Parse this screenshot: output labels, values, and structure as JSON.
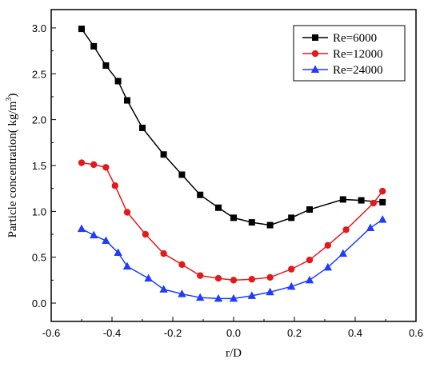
{
  "chart_data": {
    "type": "line",
    "xlabel": "r/D",
    "ylabel": "Particle concentration(  kg/m",
    "ylabel_sup": "3",
    "ylabel_close": ")",
    "xlim": [
      -0.6,
      0.6
    ],
    "ylim": [
      -0.2,
      3.2
    ],
    "x_ticks": [
      -0.6,
      -0.4,
      -0.2,
      0.0,
      0.2,
      0.4,
      0.6
    ],
    "x_tick_labels": [
      "-0.6",
      "-0.4",
      "-0.2",
      "0.0",
      "0.2",
      "0.4",
      "0.6"
    ],
    "y_ticks": [
      0.0,
      0.5,
      1.0,
      1.5,
      2.0,
      2.5,
      3.0
    ],
    "y_tick_labels": [
      "0.0",
      "0.5",
      "1.0",
      "1.5",
      "2.0",
      "2.5",
      "3.0"
    ],
    "grid": false,
    "legend_position": "top-right",
    "series": [
      {
        "name": "Re=6000",
        "color": "#000000",
        "marker": "square",
        "x": [
          -0.5,
          -0.46,
          -0.42,
          -0.38,
          -0.35,
          -0.3,
          -0.23,
          -0.17,
          -0.11,
          -0.05,
          0.0,
          0.06,
          0.12,
          0.19,
          0.25,
          0.36,
          0.42,
          0.49
        ],
        "y": [
          2.99,
          2.8,
          2.59,
          2.42,
          2.21,
          1.91,
          1.62,
          1.4,
          1.18,
          1.04,
          0.93,
          0.88,
          0.85,
          0.93,
          1.02,
          1.13,
          1.12,
          1.1
        ]
      },
      {
        "name": "Re=12000",
        "color": "#e31a1c",
        "marker": "circle",
        "x": [
          -0.5,
          -0.46,
          -0.42,
          -0.39,
          -0.35,
          -0.29,
          -0.23,
          -0.17,
          -0.11,
          -0.05,
          0.0,
          0.06,
          0.12,
          0.19,
          0.25,
          0.31,
          0.37,
          0.46,
          0.49
        ],
        "y": [
          1.53,
          1.51,
          1.48,
          1.28,
          0.99,
          0.75,
          0.54,
          0.42,
          0.3,
          0.27,
          0.25,
          0.26,
          0.28,
          0.37,
          0.47,
          0.63,
          0.8,
          1.09,
          1.22
        ]
      },
      {
        "name": "Re=24000",
        "color": "#1f3cff",
        "marker": "triangle",
        "x": [
          -0.5,
          -0.46,
          -0.42,
          -0.38,
          -0.35,
          -0.28,
          -0.23,
          -0.17,
          -0.11,
          -0.05,
          0.0,
          0.06,
          0.12,
          0.19,
          0.25,
          0.31,
          0.36,
          0.45,
          0.49
        ],
        "y": [
          0.81,
          0.74,
          0.68,
          0.55,
          0.4,
          0.27,
          0.15,
          0.1,
          0.06,
          0.05,
          0.05,
          0.08,
          0.12,
          0.18,
          0.25,
          0.39,
          0.54,
          0.82,
          0.91
        ]
      }
    ]
  }
}
